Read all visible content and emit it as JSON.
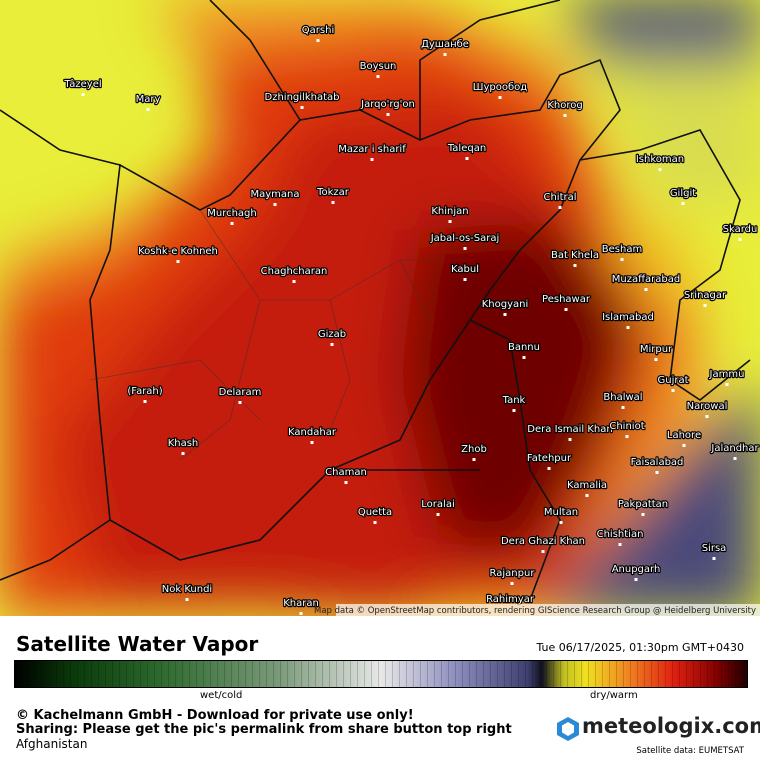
{
  "map": {
    "cities": [
      "Qarshi",
      "Душанбе",
      "Boysun",
      "Jarqo'rg'on",
      "Шурообод",
      "Khorog",
      "Mary",
      "Tâzeyel",
      "Dzhingilkhatab",
      "Mazar i sharif",
      "Taleqan",
      "Maymana",
      "Tokzar",
      "Murchagh",
      "Khinjan",
      "Chitral",
      "Ishkoman",
      "Gilgit",
      "Skardu",
      "Jabal-os-Saraj",
      "Bat Khela",
      "Besham",
      "Koshk-e Kohneh",
      "Kabul",
      "Chaghcharan",
      "Muzaffarabad",
      "Srinagar",
      "Peshawar",
      "Khogyani",
      "Islamabad",
      "Gizab",
      "Bannu",
      "Mirpur",
      "Jammu",
      "Gujrat",
      "(Farah)",
      "Delaram",
      "Tank",
      "Bhalwal",
      "Narowal",
      "Dera Ismail Khan",
      "Chiniot",
      "Kandahar",
      "Khash",
      "Lahore",
      "Jalandhar",
      "Zhob",
      "Fatehpur",
      "Faisalabad",
      "Chaman",
      "Kamalia",
      "Loralai",
      "Quetta",
      "Multan",
      "Pakpattan",
      "Dera Ghazi Khan",
      "Chishtian",
      "Sirsa",
      "Anupgarh",
      "Rajanpur",
      "Nok Kundi",
      "Kharan",
      "Rahimyar"
    ],
    "attribution": "Map data © OpenStreetMap contributors, rendering GIScience Research Group @ Heidelberg University"
  },
  "footer": {
    "title": "Satellite Water Vapor",
    "timestamp": "Tue 06/17/2025, 01:30pm GMT+0430",
    "legend_left": "wet/cold",
    "legend_right": "dry/warm",
    "copyright": "© Kachelmann GmbH - Download for private use only!",
    "sharing": "Sharing: Please get the pic's permalink from share button top right",
    "region": "Afghanistan",
    "brand": "meteologix.com",
    "source": "Satellite data: EUMETSAT"
  }
}
